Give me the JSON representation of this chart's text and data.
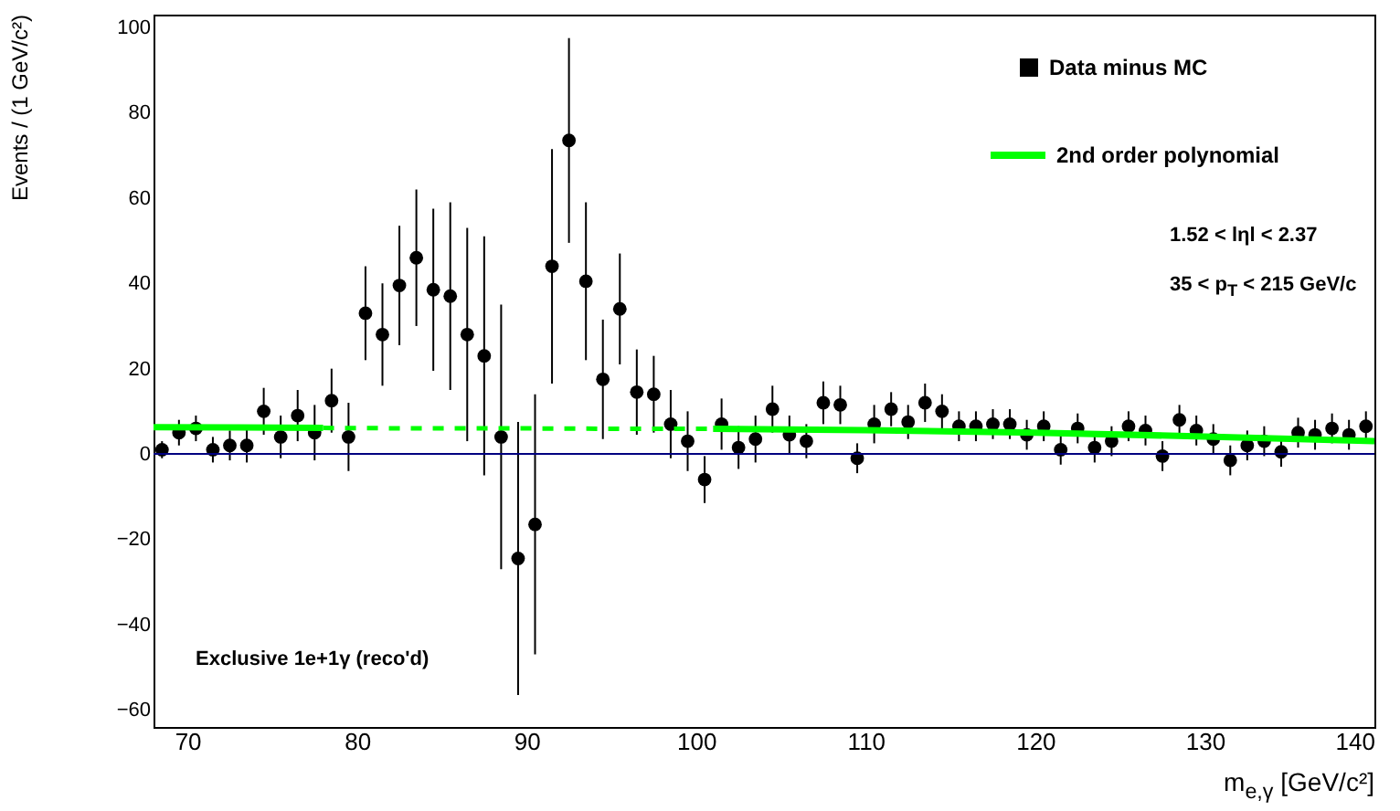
{
  "chart_data": {
    "type": "scatter",
    "xlabel": "m$_{e,γ}$ [GeV/c²]",
    "ylabel": "Events / (1 GeV/c²)",
    "annotations": [
      "Exclusive 1e+1γ (reco'd)",
      "1.52 < lηl < 2.37",
      "35 < p$_{T}$ < 215 GeV/c"
    ],
    "xlim": [
      68,
      140
    ],
    "ylim": [
      -64,
      103
    ],
    "xticks": [
      70,
      80,
      90,
      100,
      110,
      120,
      130,
      140
    ],
    "yticks": [
      -60,
      -40,
      -20,
      0,
      20,
      40,
      60,
      80,
      100
    ],
    "grid": false,
    "legend": "top right",
    "marker": "circle",
    "series": [
      {
        "name": "Data minus MC",
        "color": "#000000",
        "x": [
          68.5,
          69.5,
          70.5,
          71.5,
          72.5,
          73.5,
          74.5,
          75.5,
          76.5,
          77.5,
          78.5,
          79.5,
          80.5,
          81.5,
          82.5,
          83.5,
          84.5,
          85.5,
          86.5,
          87.5,
          88.5,
          89.5,
          90.5,
          91.5,
          92.5,
          93.5,
          94.5,
          95.5,
          96.5,
          97.5,
          98.5,
          99.5,
          100.5,
          101.5,
          102.5,
          103.5,
          104.5,
          105.5,
          106.5,
          107.5,
          108.5,
          109.5,
          110.5,
          111.5,
          112.5,
          113.5,
          114.5,
          115.5,
          116.5,
          117.5,
          118.5,
          119.5,
          120.5,
          121.5,
          122.5,
          123.5,
          124.5,
          125.5,
          126.5,
          127.5,
          128.5,
          129.5,
          130.5,
          131.5,
          132.5,
          133.5,
          134.5,
          135.5,
          136.5,
          137.5,
          138.5,
          139.5
        ],
        "values": [
          1,
          5,
          6,
          1,
          2,
          2,
          10,
          4,
          9,
          5,
          12.5,
          4,
          33,
          28,
          39.5,
          46,
          38.5,
          37,
          28,
          23,
          4,
          -24.5,
          -16.5,
          44,
          73.5,
          40.5,
          17.5,
          34,
          14.5,
          14,
          7,
          3,
          -6,
          7,
          1.5,
          3.5,
          10.5,
          4.5,
          3,
          12,
          11.5,
          -1,
          7,
          10.5,
          7.5,
          12,
          10,
          6.5,
          6.5,
          7,
          7,
          4.5,
          6.5,
          1,
          6,
          1.5,
          3,
          6.5,
          5.5,
          -0.5,
          8,
          5.5,
          3.5,
          -1.5,
          2,
          3,
          0.5,
          5,
          4.5,
          6,
          4.5,
          6.5
        ],
        "errors": [
          2,
          3,
          3,
          3,
          3.5,
          4,
          5.5,
          5,
          6,
          6.5,
          7.5,
          8,
          11,
          12,
          14,
          16,
          19,
          22,
          25,
          28,
          31,
          32,
          30.5,
          27.5,
          24,
          18.5,
          14,
          13,
          10,
          9,
          8,
          7,
          5.5,
          6,
          5,
          5.5,
          5.5,
          4.5,
          4,
          5,
          4.5,
          3.5,
          4.5,
          4,
          4,
          4.5,
          4,
          3.5,
          3.5,
          3.5,
          3.5,
          3.5,
          3.5,
          3.5,
          3.5,
          3.5,
          3.5,
          3.5,
          3.5,
          3.5,
          3.5,
          3.5,
          3.5,
          3.5,
          3.5,
          3.5,
          3.5,
          3.5,
          3.5,
          3.5,
          3.5,
          3.5
        ]
      },
      {
        "type": "line",
        "color": "#00ff00",
        "line_style": "dashed",
        "marker": "none",
        "x": [
          78,
          84,
          90,
          96,
          101
        ],
        "values": [
          6.1,
          6,
          6,
          5.9,
          5.9
        ]
      },
      {
        "name": "2nd order polynomial",
        "type": "line",
        "color": "#00ff00",
        "line_style": "solid",
        "marker": "none",
        "x": [
          68,
          73,
          78,
          89.5,
          101,
          110,
          120,
          130,
          140
        ],
        "values": [
          6.3,
          6.2,
          6.1,
          null,
          5.9,
          5.6,
          5,
          4.1,
          3
        ]
      }
    ],
    "ref_lines": [
      {
        "axis": "y",
        "value": 0,
        "color": "#000080"
      }
    ]
  }
}
